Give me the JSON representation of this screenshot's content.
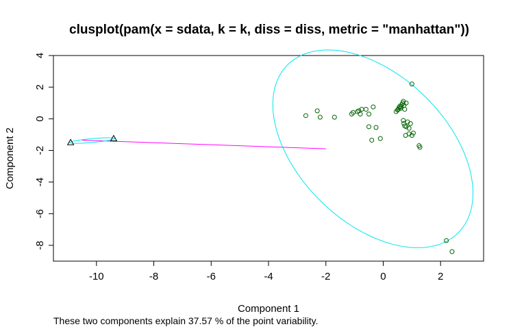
{
  "chart_data": {
    "type": "scatter",
    "title": "clusplot(pam(x = sdata, k = k, diss = diss, metric = \"manhattan\"))",
    "xlabel": "Component 1",
    "ylabel": "Component 2",
    "footnote": "These two components explain 37.57 % of the point variability.",
    "xlim": [
      -11.5,
      3.5
    ],
    "ylim": [
      -9.0,
      4.0
    ],
    "xticks": [
      -10,
      -8,
      -6,
      -4,
      -2,
      0,
      2
    ],
    "yticks": [
      -8,
      -6,
      -4,
      -2,
      0,
      2,
      4
    ],
    "xtick_labels": [
      "-10",
      "-8",
      "-6",
      "-4",
      "-2",
      "0",
      "2"
    ],
    "ytick_labels": [
      "-8",
      "-6",
      "-4",
      "-2",
      "0",
      "2",
      "4"
    ],
    "colors": {
      "points": "#006400",
      "ellipse": "#00e5ee",
      "connector": "#ff00ff",
      "frame": "#000000"
    },
    "ellipse_cluster_1": {
      "center": [
        -0.36,
        -1.9
      ],
      "semi_axes": [
        3.0,
        6.5
      ],
      "rotation_deg": 18
    },
    "connector_segment": {
      "from": [
        -10.5,
        -1.35
      ],
      "to": [
        -2.0,
        -1.9
      ]
    },
    "series": [
      {
        "cluster": 1,
        "marker": "circle",
        "points": [
          [
            -2.7,
            0.2
          ],
          [
            -2.3,
            0.5
          ],
          [
            -2.2,
            0.1
          ],
          [
            -1.7,
            0.1
          ],
          [
            -1.1,
            0.3
          ],
          [
            -1.05,
            0.4
          ],
          [
            -0.9,
            0.45
          ],
          [
            -0.85,
            0.5
          ],
          [
            -0.8,
            0.3
          ],
          [
            -0.75,
            0.6
          ],
          [
            -0.6,
            0.6
          ],
          [
            -0.5,
            0.3
          ],
          [
            -0.35,
            0.75
          ],
          [
            -0.5,
            -0.5
          ],
          [
            -0.4,
            -1.35
          ],
          [
            -0.25,
            -0.55
          ],
          [
            -0.1,
            -1.25
          ],
          [
            0.45,
            0.45
          ],
          [
            0.5,
            0.55
          ],
          [
            0.52,
            0.6
          ],
          [
            0.55,
            0.7
          ],
          [
            0.58,
            0.8
          ],
          [
            0.6,
            0.65
          ],
          [
            0.62,
            0.75
          ],
          [
            0.65,
            0.9
          ],
          [
            0.68,
            1.0
          ],
          [
            0.7,
            1.1
          ],
          [
            0.72,
            0.85
          ],
          [
            0.75,
            0.6
          ],
          [
            0.8,
            1.0
          ],
          [
            0.7,
            -0.1
          ],
          [
            0.72,
            -0.3
          ],
          [
            0.75,
            -0.45
          ],
          [
            0.8,
            -0.5
          ],
          [
            0.85,
            -0.2
          ],
          [
            0.9,
            -0.6
          ],
          [
            0.95,
            -0.3
          ],
          [
            0.78,
            -1.05
          ],
          [
            0.9,
            -0.95
          ],
          [
            1.0,
            -1.05
          ],
          [
            1.05,
            -0.9
          ],
          [
            1.25,
            -1.7
          ],
          [
            1.28,
            -1.8
          ],
          [
            1.0,
            2.2
          ],
          [
            2.2,
            -7.7
          ],
          [
            2.4,
            -8.4
          ]
        ]
      },
      {
        "cluster": 2,
        "marker": "triangle",
        "points": [
          [
            -10.9,
            -1.5
          ],
          [
            -9.4,
            -1.25
          ]
        ]
      }
    ]
  }
}
